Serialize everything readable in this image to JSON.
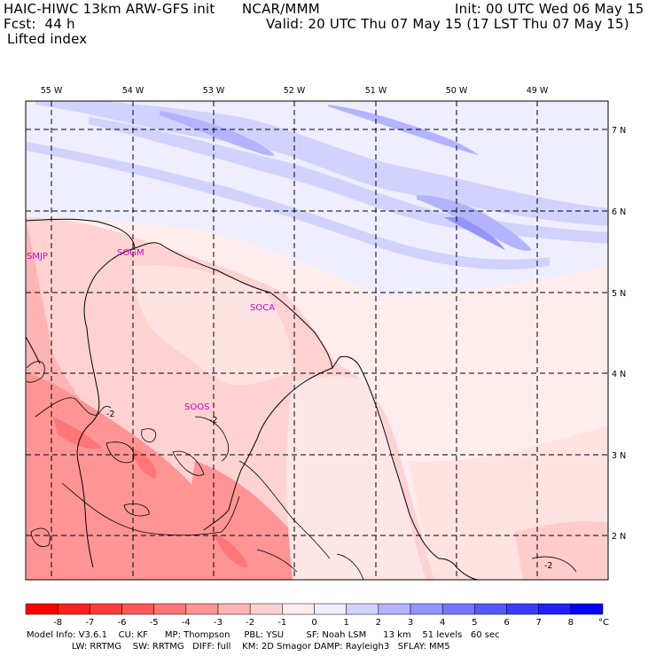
{
  "header": {
    "title": "HAIC-HIWC 13km ARW-GFS init",
    "org": "NCAR/MMM",
    "init": "Init: 00 UTC Wed 06 May 15",
    "fcst": "Fcst:  44 h",
    "valid": "Valid: 20 UTC Thu 07 May 15 (17 LST Thu 07 May 15)",
    "field": "Lifted index"
  },
  "map": {
    "lon_labels": [
      "55 W",
      "54 W",
      "53 W",
      "52 W",
      "51 W",
      "50 W",
      "49 W"
    ],
    "lat_labels": [
      "7 N",
      "6 N",
      "5 N",
      "4 N",
      "3 N",
      "2 N"
    ],
    "stations": [
      "SMJP",
      "SOGM",
      "SOCA",
      "SOOS"
    ],
    "contour_labels": [
      "-2",
      "-2",
      "-2"
    ]
  },
  "colorbar": {
    "ticks": [
      "-8",
      "-7",
      "-6",
      "-5",
      "-4",
      "-3",
      "-2",
      "-1",
      "0",
      "1",
      "2",
      "3",
      "4",
      "5",
      "6",
      "7",
      "8"
    ],
    "unit": "°C",
    "colors": [
      "#ff0000",
      "#ff1f1f",
      "#ff3b3b",
      "#ff5757",
      "#ff7676",
      "#ff9494",
      "#ffb3b3",
      "#ffd2d2",
      "#ffeded",
      "#eeeeff",
      "#d2d2ff",
      "#b3b3ff",
      "#9494ff",
      "#7676ff",
      "#5757ff",
      "#3b3bff",
      "#1f1fff",
      "#0000ff"
    ]
  },
  "footer": {
    "line1": "Model Info: V3.6.1    CU: KF      MP: Thompson     PBL: YSU        SF: Noah LSM      13 km    51 levels   60 sec",
    "line2": "                LW: RRTMG    SW: RRTMG   DIFF: full    KM: 2D Smagor DAMP: Rayleigh3   SFLAY: MM5"
  }
}
